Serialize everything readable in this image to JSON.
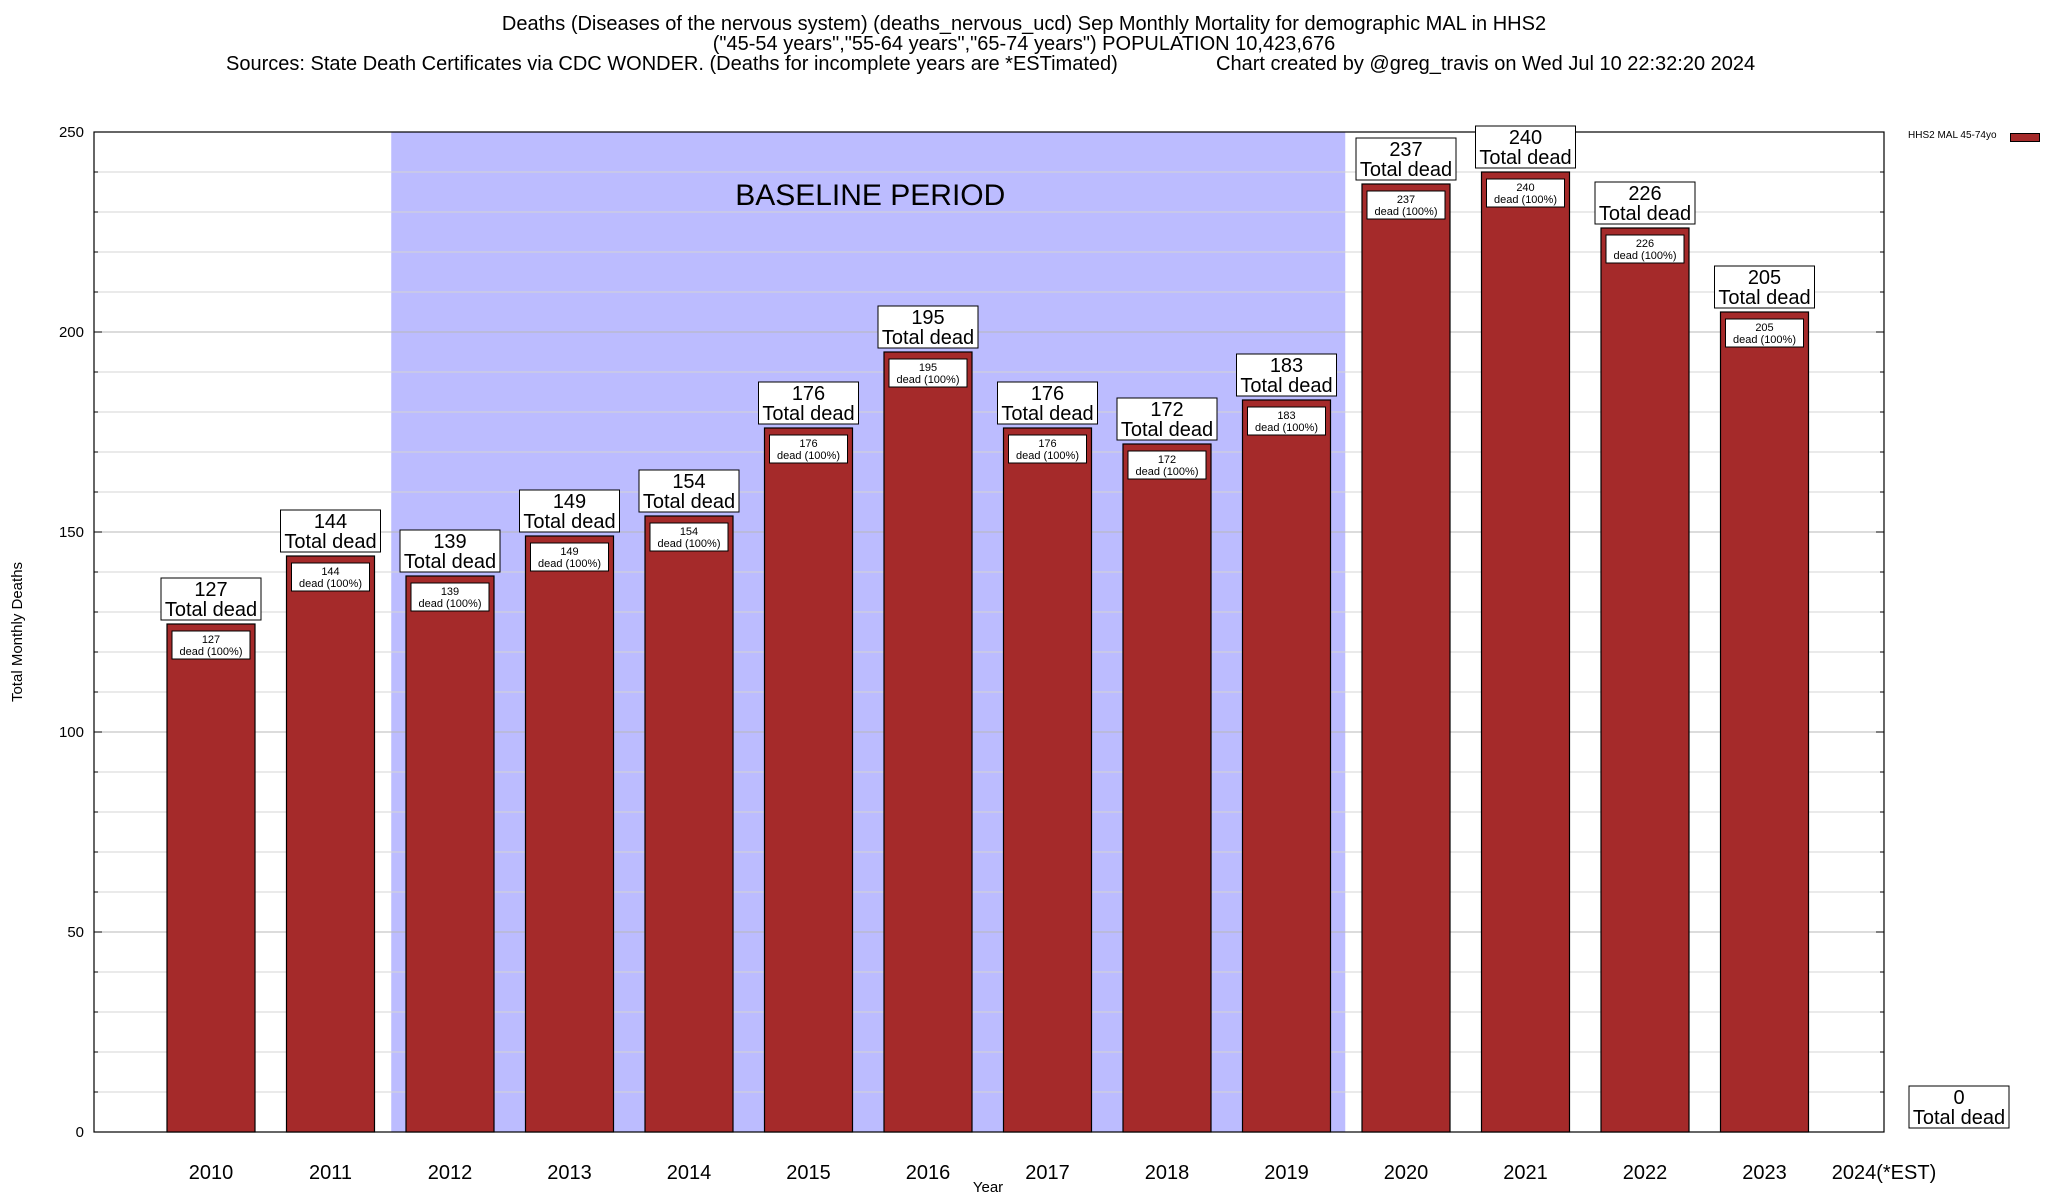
{
  "chart_data": {
    "type": "bar",
    "title_lines": [
      "Deaths (Diseases of the nervous system) (deaths_nervous_ucd) Sep Monthly Mortality for demographic MAL in HHS2",
      "(\"45-54 years\",\"55-64 years\",\"65-74 years\") POPULATION 10,423,676"
    ],
    "source_text": "Sources: State Death Certificates via CDC WONDER. (Deaths for incomplete years are *ESTimated)",
    "credit_text": "Chart created by @greg_travis on Wed Jul 10 22:32:20 2024",
    "xlabel": "Year",
    "ylabel": "Total Monthly Deaths",
    "ylim": [
      0,
      250
    ],
    "yticks": [
      0,
      50,
      100,
      150,
      200,
      250
    ],
    "categories": [
      "2010",
      "2011",
      "2012",
      "2013",
      "2014",
      "2015",
      "2016",
      "2017",
      "2018",
      "2019",
      "2020",
      "2021",
      "2022",
      "2023",
      "2024(*EST)"
    ],
    "series": [
      {
        "name": "HHS2 MAL 45-74yo",
        "color": "#a52a2a",
        "values": [
          127,
          144,
          139,
          149,
          154,
          176,
          195,
          176,
          172,
          183,
          237,
          240,
          226,
          205,
          0
        ]
      }
    ],
    "total_label_suffix": "Total dead",
    "inner_label_suffix": "dead (100%)",
    "baseline": {
      "label": "BASELINE PERIOD",
      "from": "2012",
      "to": "2019",
      "color": "#bcbcff"
    },
    "grid": true,
    "legend_position": "top-right"
  }
}
